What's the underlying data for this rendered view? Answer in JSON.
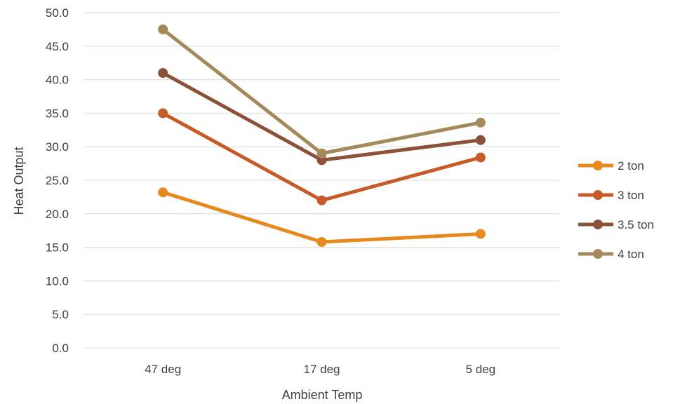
{
  "chart_data": {
    "type": "line",
    "title": "",
    "xlabel": "Ambient Temp",
    "ylabel": "Heat Output",
    "categories": [
      "47 deg",
      "17 deg",
      "5 deg"
    ],
    "ylim": [
      0,
      50
    ],
    "ytick_step": 5,
    "ytick_labels": [
      "0.0",
      "5.0",
      "10.0",
      "15.0",
      "20.0",
      "25.0",
      "30.0",
      "35.0",
      "40.0",
      "45.0",
      "50.0"
    ],
    "grid": true,
    "legend_position": "right",
    "series": [
      {
        "name": "2 ton",
        "color": "#E8891D",
        "values": [
          23.2,
          15.8,
          17.0
        ]
      },
      {
        "name": "3 ton",
        "color": "#C85A28",
        "values": [
          35.0,
          22.0,
          28.4
        ]
      },
      {
        "name": "3.5 ton",
        "color": "#8B5238",
        "values": [
          41.0,
          28.0,
          31.0
        ]
      },
      {
        "name": "4 ton",
        "color": "#A48A5A",
        "values": [
          47.5,
          29.0,
          33.6
        ]
      }
    ]
  }
}
